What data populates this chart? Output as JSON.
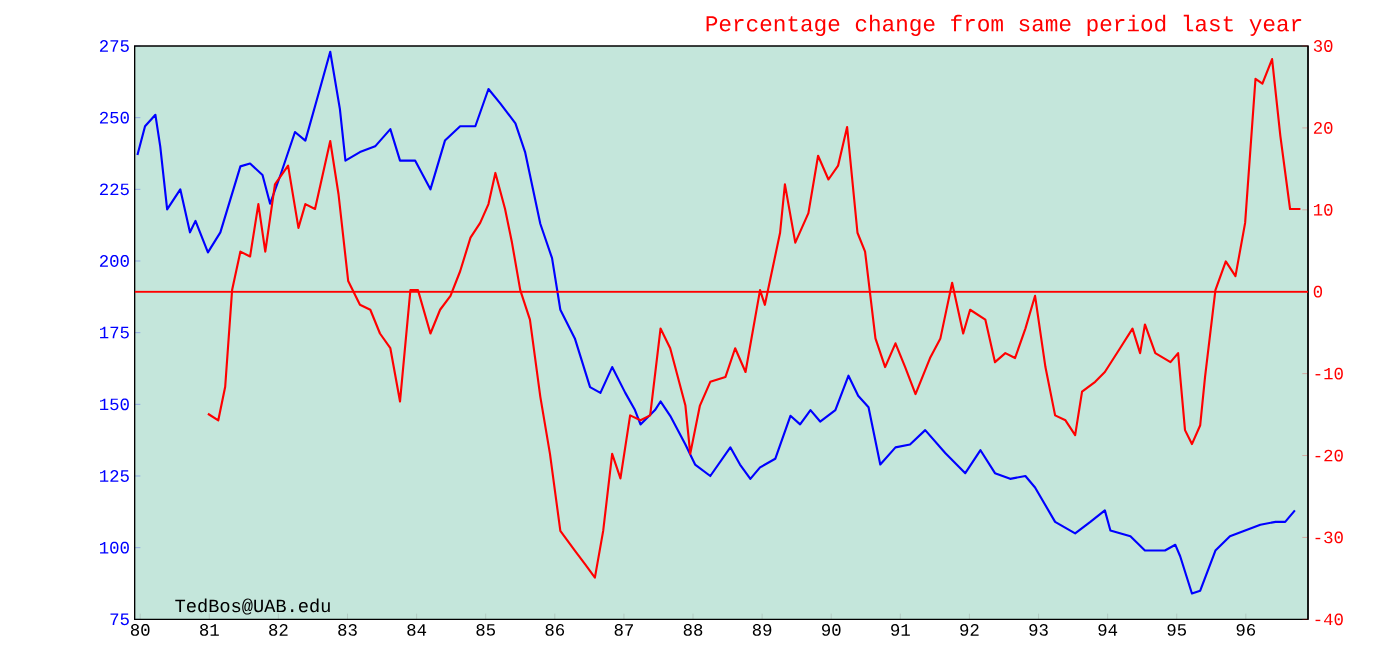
{
  "chart_data": {
    "type": "line",
    "title": "Percentage change from same period last year",
    "annotations": [
      "TedBos@UAB.edu"
    ],
    "xlim": [
      79.92,
      96.9
    ],
    "xticks": [
      80,
      81,
      82,
      83,
      84,
      85,
      86,
      87,
      88,
      89,
      90,
      91,
      92,
      93,
      94,
      95,
      96
    ],
    "ylim": [
      75,
      275
    ],
    "yticks": [
      75,
      100,
      125,
      150,
      175,
      200,
      225,
      250,
      275
    ],
    "y2lim": [
      -40,
      30
    ],
    "y2ticks": [
      -40,
      -30,
      -20,
      -10,
      0,
      10,
      20,
      30
    ],
    "marker": "none",
    "ref_lines": [
      {
        "axis": "y2",
        "value": 0,
        "color": "#ff0000"
      }
    ],
    "series": [
      {
        "color": "#0000ff",
        "axis": "y",
        "x": [
          79.96,
          80.07,
          80.22,
          80.29,
          80.39,
          80.58,
          80.72,
          80.8,
          80.98,
          81.16,
          81.45,
          81.59,
          81.77,
          81.88,
          82.03,
          82.24,
          82.39,
          82.6,
          82.75,
          82.89,
          82.97,
          83.18,
          83.4,
          83.62,
          83.76,
          83.98,
          84.2,
          84.41,
          84.63,
          84.85,
          85.04,
          85.21,
          85.43,
          85.57,
          85.79,
          85.96,
          86.08,
          86.29,
          86.51,
          86.66,
          86.83,
          87.02,
          87.16,
          87.24,
          87.45,
          87.53,
          87.67,
          87.89,
          88.03,
          88.25,
          88.54,
          88.68,
          88.83,
          88.97,
          89.19,
          89.41,
          89.55,
          89.7,
          89.84,
          90.06,
          90.25,
          90.39,
          90.54,
          90.71,
          90.93,
          91.14,
          91.36,
          91.65,
          91.94,
          92.16,
          92.37,
          92.59,
          92.81,
          92.95,
          93.24,
          93.53,
          93.75,
          93.96,
          94.04,
          94.33,
          94.54,
          94.83,
          94.98,
          95.05,
          95.22,
          95.34,
          95.56,
          95.77,
          95.99,
          96.21,
          96.43,
          96.57,
          96.71
        ],
        "values": [
          237,
          247,
          251,
          240,
          218,
          225,
          210,
          214,
          203,
          210,
          233,
          234,
          230,
          220,
          230,
          245,
          242,
          260,
          273,
          253,
          235,
          238,
          240,
          246,
          235,
          235,
          225,
          242,
          247,
          247,
          260,
          255,
          248,
          238,
          213,
          201,
          183,
          173,
          156,
          154,
          163,
          154,
          148,
          143,
          148,
          151,
          146,
          136,
          129,
          125,
          135,
          129,
          124,
          128,
          131,
          146,
          143,
          148,
          144,
          148,
          160,
          153,
          149,
          129,
          135,
          136,
          141,
          133,
          126,
          134,
          126,
          124,
          125,
          121,
          109,
          105,
          109,
          113,
          106,
          104,
          99,
          99,
          101,
          97,
          84,
          85,
          99,
          104,
          106,
          108,
          109,
          109,
          113
        ]
      },
      {
        "color": "#ff0000",
        "axis": "y2",
        "x": [
          80.98,
          81.13,
          81.23,
          81.33,
          81.45,
          81.59,
          81.71,
          81.81,
          81.95,
          82.14,
          82.29,
          82.39,
          82.53,
          82.75,
          82.87,
          83.01,
          83.18,
          83.33,
          83.47,
          83.62,
          83.76,
          83.91,
          84.02,
          84.2,
          84.34,
          84.49,
          84.63,
          84.78,
          84.92,
          85.04,
          85.14,
          85.28,
          85.38,
          85.5,
          85.64,
          85.79,
          85.93,
          86.08,
          86.29,
          86.44,
          86.58,
          86.7,
          86.83,
          86.95,
          87.09,
          87.24,
          87.38,
          87.53,
          87.67,
          87.89,
          87.96,
          88.1,
          88.25,
          88.47,
          88.61,
          88.76,
          88.97,
          89.04,
          89.26,
          89.33,
          89.48,
          89.67,
          89.81,
          89.96,
          90.1,
          90.23,
          90.38,
          90.49,
          90.64,
          90.78,
          90.93,
          91.07,
          91.22,
          91.43,
          91.58,
          91.75,
          91.91,
          92.01,
          92.23,
          92.37,
          92.52,
          92.66,
          92.81,
          92.95,
          93.1,
          93.24,
          93.39,
          93.53,
          93.63,
          93.82,
          93.96,
          94.18,
          94.36,
          94.47,
          94.54,
          94.69,
          94.91,
          95.02,
          95.12,
          95.22,
          95.34,
          95.41,
          95.56,
          95.71,
          95.85,
          95.99,
          96.14,
          96.24,
          96.38,
          96.5,
          96.64,
          96.79
        ],
        "values": [
          -14.9,
          -15.7,
          -11.6,
          0.2,
          4.9,
          4.3,
          10.7,
          4.9,
          13.1,
          15.4,
          7.8,
          10.7,
          10.1,
          18.4,
          11.9,
          1.3,
          -1.6,
          -2.2,
          -5.1,
          -6.9,
          -13.4,
          0.2,
          0.2,
          -5.1,
          -2.2,
          -0.5,
          2.5,
          6.6,
          8.4,
          10.7,
          14.5,
          10.1,
          6,
          0.2,
          -3.4,
          -12.8,
          -19.8,
          -29.2,
          -31.6,
          -33.3,
          -34.9,
          -29.2,
          -19.8,
          -22.8,
          -15.1,
          -15.7,
          -15.1,
          -4.5,
          -6.9,
          -13.9,
          -19.8,
          -13.9,
          -11,
          -10.4,
          -6.9,
          -9.8,
          0.2,
          -1.6,
          7.2,
          13.1,
          6,
          9.6,
          16.6,
          13.7,
          15.4,
          20.1,
          7.2,
          4.9,
          -5.7,
          -9.2,
          -6.3,
          -9.2,
          -12.5,
          -8.1,
          -5.7,
          1.1,
          -5.1,
          -2.2,
          -3.4,
          -8.6,
          -7.5,
          -8.1,
          -4.5,
          -0.5,
          -9.2,
          -15.1,
          -15.7,
          -17.5,
          -12.2,
          -11,
          -9.8,
          -6.9,
          -4.5,
          -7.5,
          -4,
          -7.5,
          -8.6,
          -7.5,
          -16.9,
          -18.6,
          -16.3,
          -10.4,
          0.2,
          3.7,
          1.9,
          8.4,
          26,
          25.4,
          28.4,
          19,
          10.1,
          10.1
        ]
      }
    ]
  }
}
